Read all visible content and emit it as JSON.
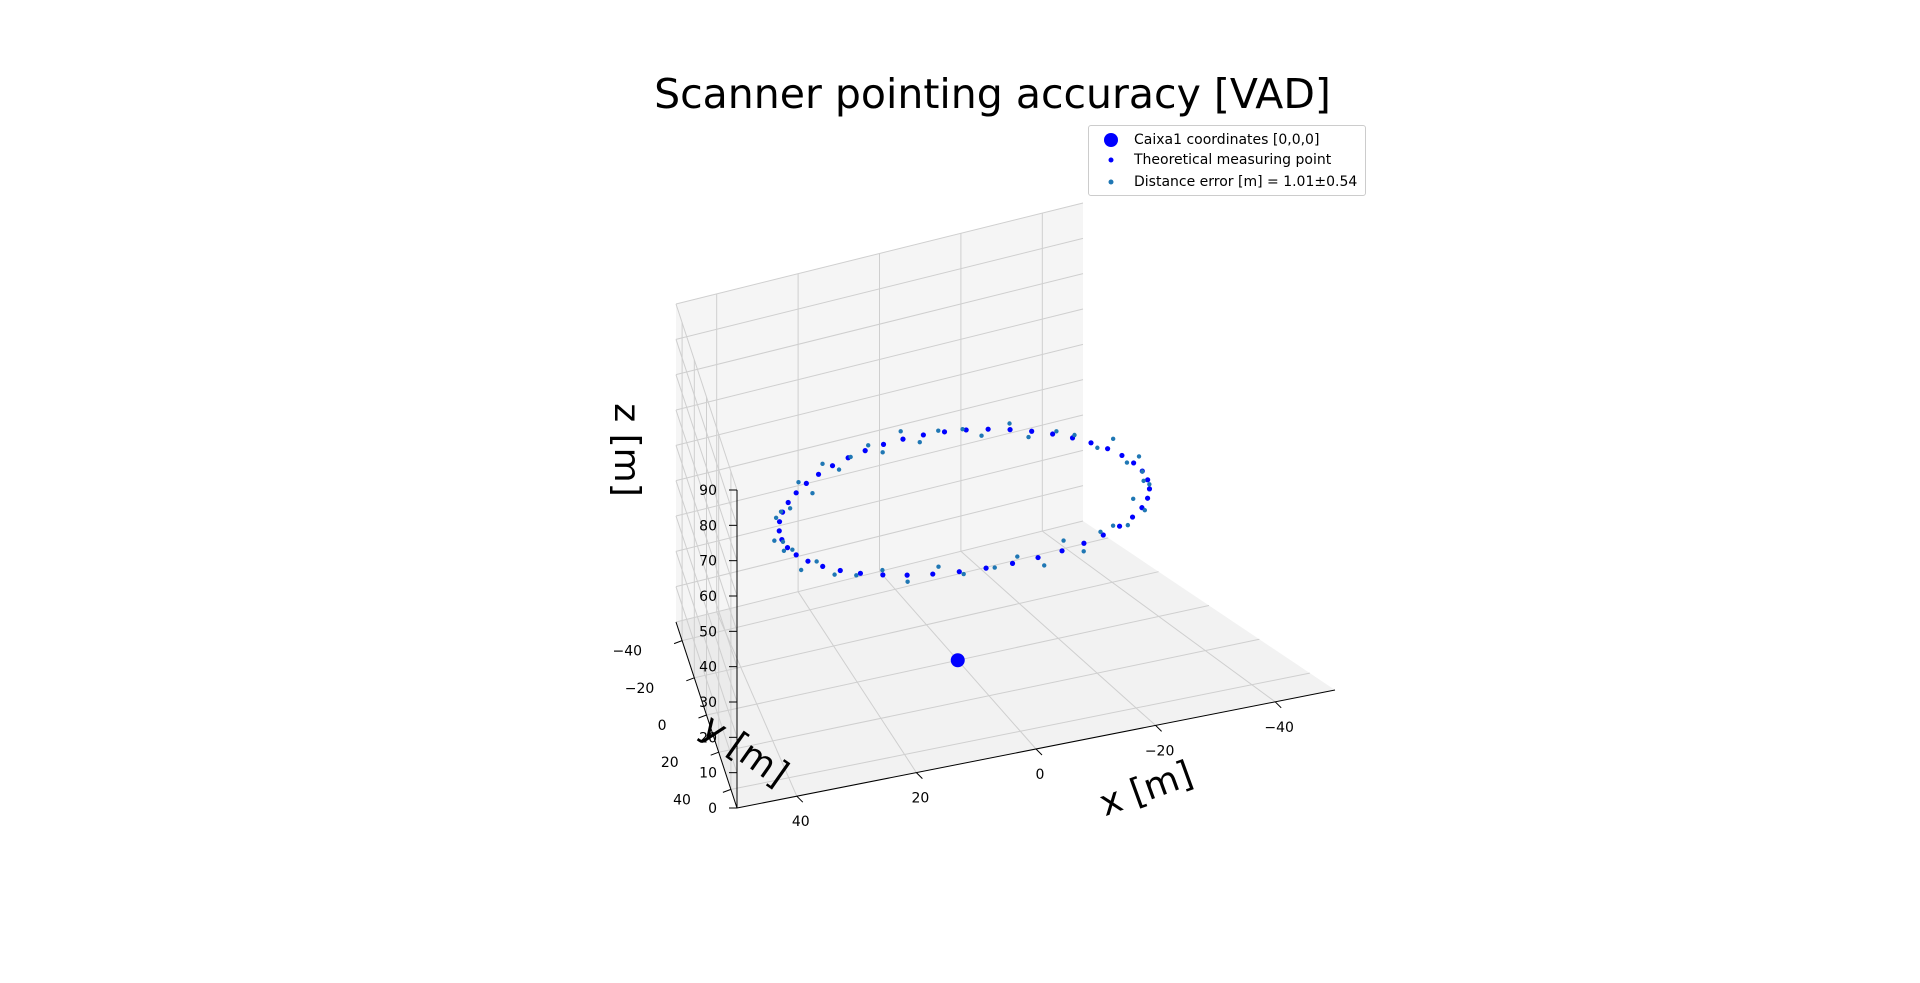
{
  "title": "Scanner pointing accuracy [VAD]",
  "legend": [
    {
      "label": "Caixa1 coordinates [0,0,0]",
      "color": "#0000ff",
      "marker": "large-dot"
    },
    {
      "label": "Theoretical measuring point",
      "color": "#0000ff",
      "marker": "small-dot"
    },
    {
      "label": "Distance error [m] = 1.01±0.54",
      "color": "#1f77b4",
      "marker": "small-dot"
    }
  ],
  "chart_data": {
    "type": "scatter3d",
    "title": "Scanner pointing accuracy [VAD]",
    "xlabel": "x [m]",
    "ylabel": "y [m]",
    "zlabel": "z [m]",
    "xlim": [
      -50,
      50
    ],
    "ylim": [
      -50,
      50
    ],
    "zlim": [
      0,
      90
    ],
    "xticks": [
      "−40",
      "−20",
      "0",
      "20",
      "40"
    ],
    "yticks": [
      "−40",
      "−20",
      "0",
      "20",
      "40"
    ],
    "zticks": [
      "0",
      "10",
      "20",
      "30",
      "40",
      "50",
      "60",
      "70",
      "80",
      "90"
    ],
    "grid": true,
    "legend_position": "top-right",
    "series": [
      {
        "name": "Caixa1 coordinates [0,0,0]",
        "color": "#0000ff",
        "points": [
          [
            0,
            0,
            0
          ]
        ]
      },
      {
        "name": "Theoretical measuring point",
        "color": "#0000ff",
        "shape": "circle",
        "center": [
          0,
          0,
          45
        ],
        "radius": 35,
        "count": 48
      },
      {
        "name": "Distance error [m] = 1.01±0.54",
        "color": "#1f77b4",
        "shape": "circle",
        "center": [
          0,
          0,
          45
        ],
        "radius": 35,
        "count": 48,
        "jitter": 1.01
      }
    ]
  }
}
